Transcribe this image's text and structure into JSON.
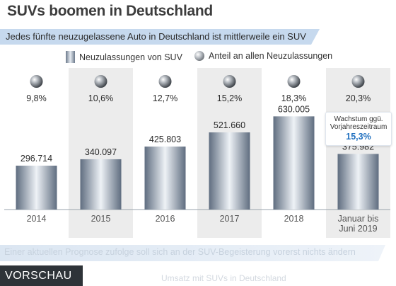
{
  "header": {
    "title": "SUVs boomen in Deutschland",
    "subtitle": "Jedes fünfte neuzugelassene Auto in Deutschland ist mittlerweile ein SUV"
  },
  "legend": {
    "bars": "Neuzulassungen von SUV",
    "share": "Anteil an allen Neuzulassungen"
  },
  "callout": {
    "text_line1": "Wachstum ggü.",
    "text_line2": "Vorjahreszeitraum",
    "value": "15,3%"
  },
  "footer": {
    "teaser": "Einer aktuellen Prognose zufolge soll sich an der SUV-Begeisterung vorerst nichts ändern",
    "teaser2": "Umsatz mit SUVs in Deutschland",
    "preview_label": "VORSCHAU"
  },
  "colors": {
    "band": "#c6d9ee",
    "shaded_column": "#ececec",
    "accent": "#1f6fbf"
  },
  "chart_data": {
    "type": "bar",
    "categories": [
      "2014",
      "2015",
      "2016",
      "2017",
      "2018",
      "Januar bis Juni 2019"
    ],
    "category_lines": [
      [
        "2014"
      ],
      [
        "2015"
      ],
      [
        "2016"
      ],
      [
        "2017"
      ],
      [
        "2018"
      ],
      [
        "Januar bis",
        "Juni 2019"
      ]
    ],
    "series": [
      {
        "name": "Neuzulassungen von SUV",
        "values": [
          296714,
          340097,
          425803,
          521660,
          630005,
          375982
        ],
        "labels": [
          "296.714",
          "340.097",
          "425.803",
          "521.660",
          "630.005",
          "375.982"
        ]
      },
      {
        "name": "Anteil an allen Neuzulassungen",
        "values": [
          9.8,
          10.6,
          12.7,
          15.2,
          18.3,
          20.3
        ],
        "labels": [
          "9,8%",
          "10,6%",
          "12,7%",
          "15,2%",
          "18,3%",
          "20,3%"
        ]
      }
    ],
    "ylim": [
      0,
      700000
    ]
  }
}
